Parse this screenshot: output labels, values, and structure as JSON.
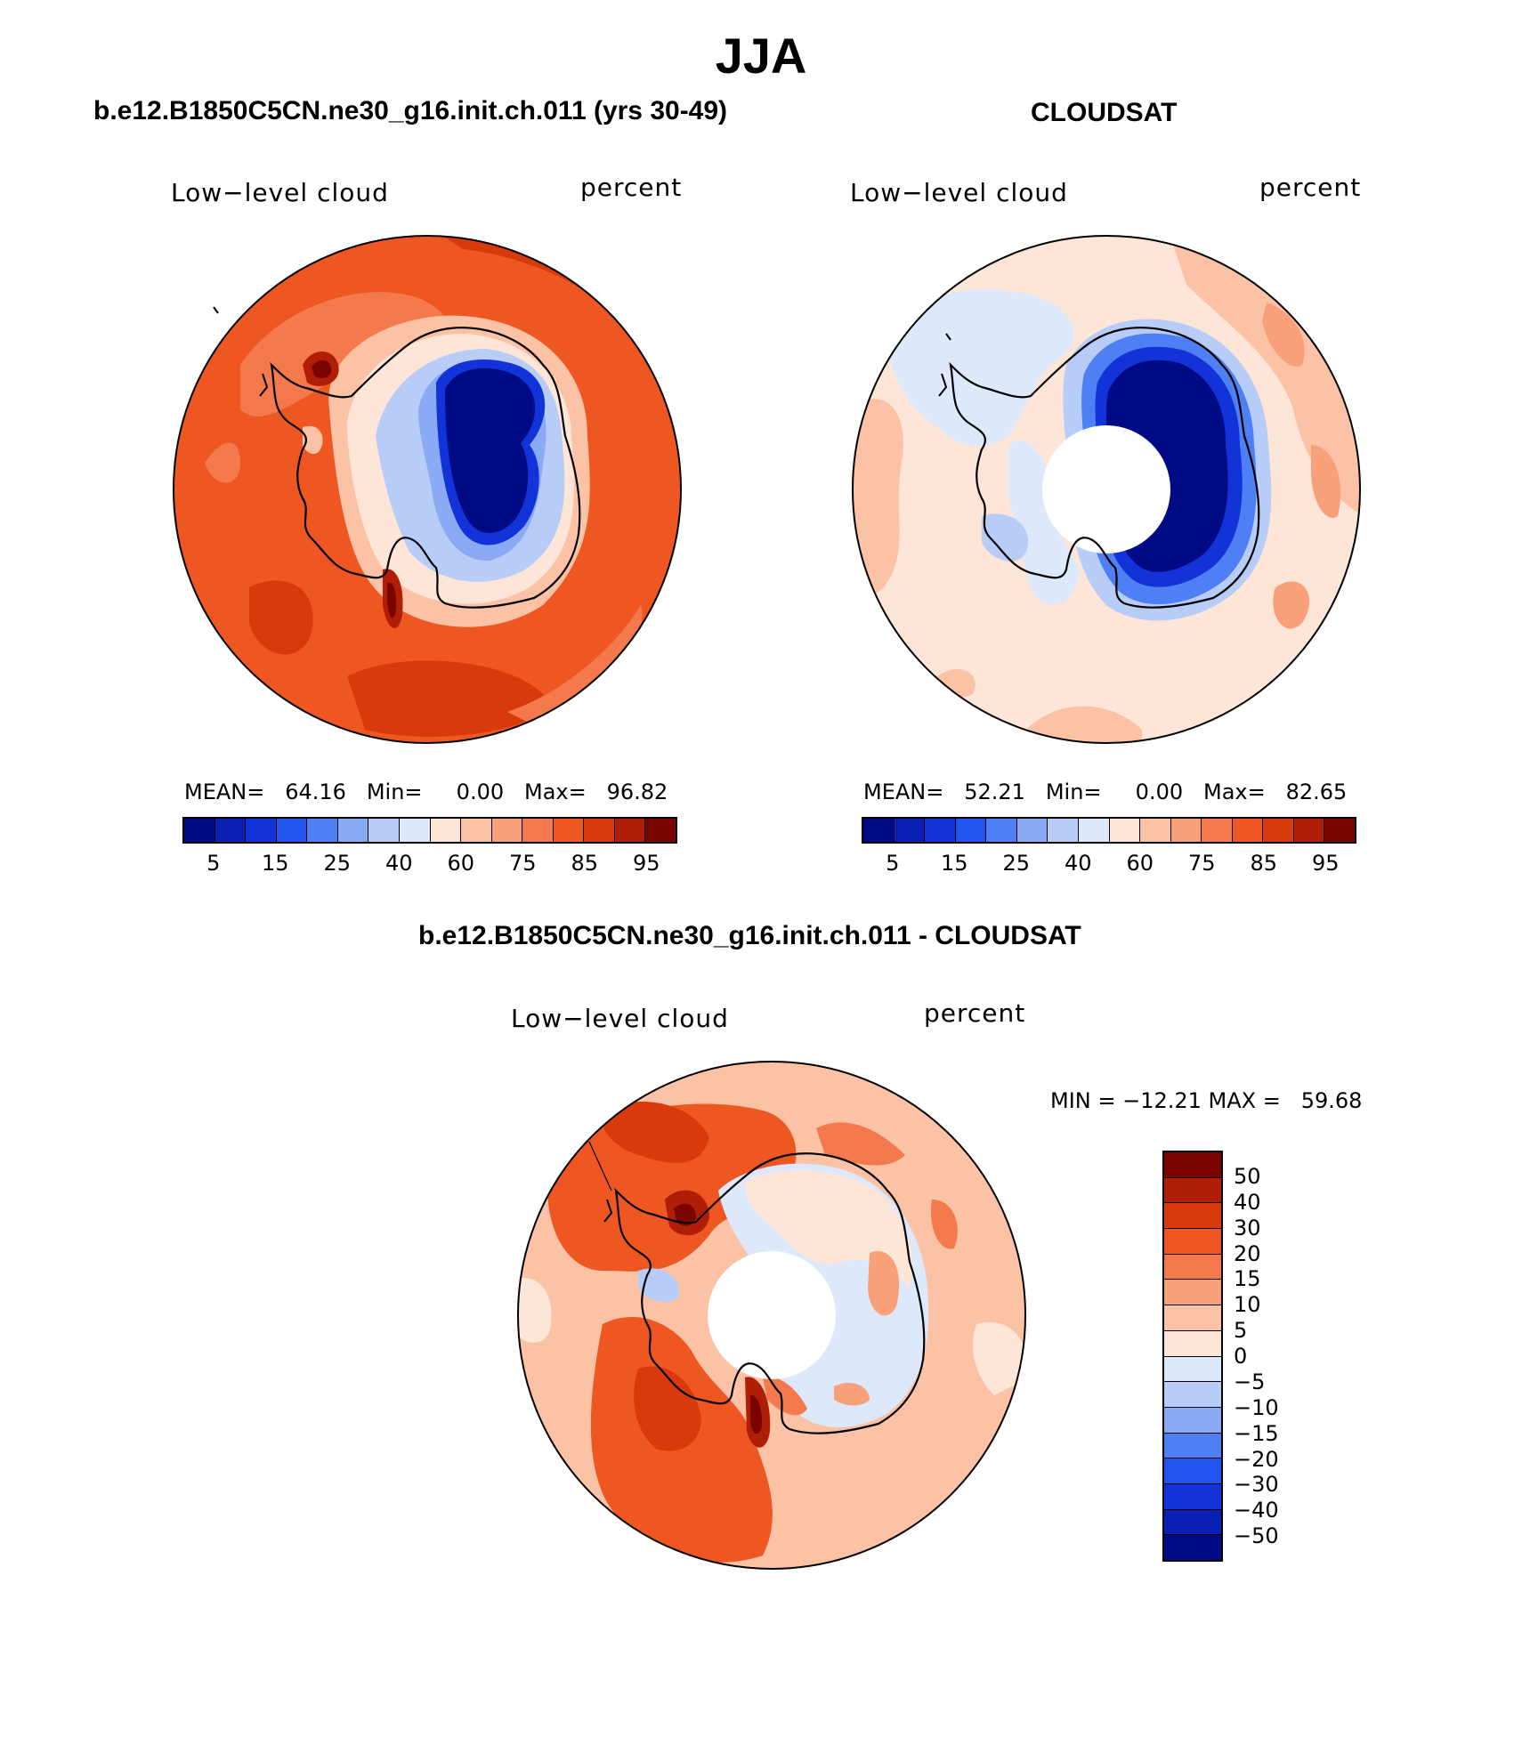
{
  "title": "JJA",
  "panels": [
    {
      "case_title": "b.e12.B1850C5CN.ne30_g16.init.ch.011 (yrs 30-49)",
      "label_left": "Low−level cloud",
      "label_right": "percent",
      "stats": "MEAN=   64.16   Min=     0.00   Max=   96.82",
      "has_pole_hole": false,
      "colorbar_ticks": [
        "5",
        "15",
        "25",
        "40",
        "60",
        "75",
        "85",
        "95"
      ]
    },
    {
      "case_title": "CLOUDSAT",
      "label_left": "Low−level cloud",
      "label_right": "percent",
      "stats": "MEAN=   52.21   Min=     0.00   Max=   82.65",
      "has_pole_hole": true,
      "colorbar_ticks": [
        "5",
        "15",
        "25",
        "40",
        "60",
        "75",
        "85",
        "95"
      ]
    }
  ],
  "diff_panel": {
    "case_title": "b.e12.B1850C5CN.ne30_g16.init.ch.011 - CLOUDSAT",
    "label_left": "Low−level cloud",
    "label_right": "percent",
    "stats": "MIN = −12.21 MAX =   59.68",
    "has_pole_hole": true,
    "colorbar_labels": [
      "50",
      "40",
      "30",
      "20",
      "15",
      "10",
      "5",
      "0",
      "−5",
      "−10",
      "−15",
      "−20",
      "−30",
      "−40",
      "−50"
    ]
  },
  "palettes": {
    "abs": [
      "#000a84",
      "#0a1fb4",
      "#1133d8",
      "#2255f0",
      "#4f7ff4",
      "#8aaaf6",
      "#b8ccf8",
      "#dde8fb",
      "#fde6d8",
      "#fbc2a6",
      "#f8a07a",
      "#f4794c",
      "#ee5622",
      "#d93a0c",
      "#b01e08",
      "#7a0400"
    ],
    "diff": [
      "#7a0400",
      "#b01e08",
      "#d93a0c",
      "#ee5622",
      "#f4794c",
      "#f8a07a",
      "#fbc2a6",
      "#fde6d8",
      "#dde8fb",
      "#b8ccf8",
      "#8aaaf6",
      "#4f7ff4",
      "#2255f0",
      "#1133d8",
      "#0a1fb4",
      "#000a84"
    ]
  },
  "chart_data": [
    {
      "type": "heatmap",
      "title": "b.e12.B1850C5CN.ne30_g16.init.ch.011 (yrs 30-49)",
      "variable": "Low−level cloud",
      "units": "percent",
      "mean": 64.16,
      "min": 0.0,
      "max": 96.82,
      "levels": [
        5,
        10,
        15,
        20,
        25,
        30,
        40,
        50,
        60,
        70,
        75,
        80,
        85,
        90,
        95
      ]
    },
    {
      "type": "heatmap",
      "title": "CLOUDSAT",
      "variable": "Low−level cloud",
      "units": "percent",
      "mean": 52.21,
      "min": 0.0,
      "max": 82.65,
      "levels": [
        5,
        10,
        15,
        20,
        25,
        30,
        40,
        50,
        60,
        70,
        75,
        80,
        85,
        90,
        95
      ]
    },
    {
      "type": "heatmap",
      "title": "b.e12.B1850C5CN.ne30_g16.init.ch.011 - CLOUDSAT",
      "variable": "Low−level cloud",
      "units": "percent",
      "min": -12.21,
      "max": 59.68,
      "levels": [
        -50,
        -40,
        -30,
        -20,
        -15,
        -10,
        -5,
        0,
        5,
        10,
        15,
        20,
        30,
        40,
        50
      ]
    }
  ]
}
